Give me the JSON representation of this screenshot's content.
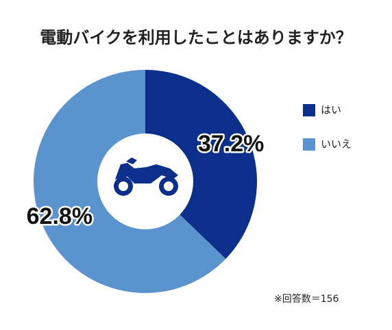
{
  "chart_data": {
    "type": "donut",
    "title": "電動バイクを利用したことはありますか？",
    "categories": [
      "はい",
      "いいえ"
    ],
    "values": [
      37.2,
      62.8
    ],
    "value_labels": [
      "37.2%",
      "62.8%"
    ],
    "colors": [
      "#0b2f8a",
      "#5b93cf"
    ],
    "legend": "right",
    "note": "※回答数＝156"
  }
}
